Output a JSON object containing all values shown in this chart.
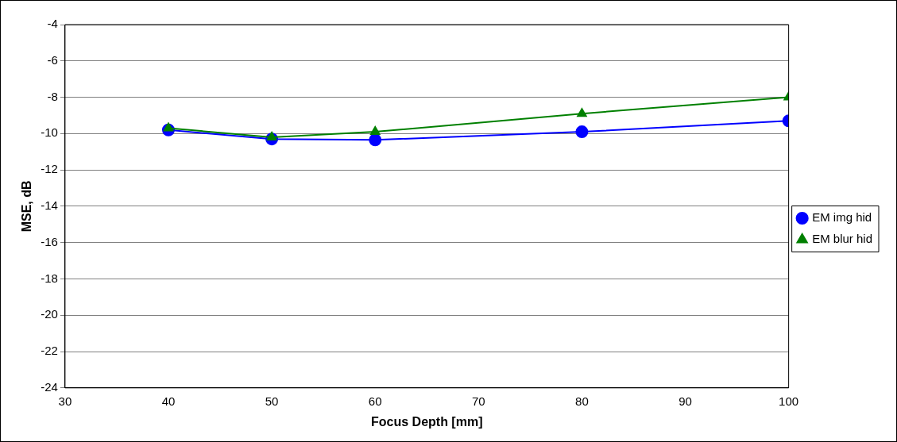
{
  "chart_data": {
    "type": "line",
    "xlabel": "Focus Depth [mm]",
    "ylabel": "MSE, dB",
    "x": [
      40,
      50,
      60,
      80,
      100
    ],
    "xlim": [
      30,
      100
    ],
    "xticks": [
      30,
      40,
      50,
      60,
      70,
      80,
      90,
      100
    ],
    "ylim": [
      -24,
      -4
    ],
    "yticks": [
      -24,
      -22,
      -20,
      -18,
      -16,
      -14,
      -12,
      -10,
      -8,
      -6,
      -4
    ],
    "grid": "y",
    "legend": "right",
    "series": [
      {
        "name": "EM img hid",
        "color": "#0000ff",
        "marker": "circle",
        "values": [
          -9.8,
          -10.3,
          -10.35,
          -9.9,
          -9.3
        ]
      },
      {
        "name": "EM blur hid",
        "color": "#008000",
        "marker": "triangle",
        "values": [
          -9.7,
          -10.2,
          -9.9,
          -8.9,
          -8.0
        ]
      }
    ]
  }
}
